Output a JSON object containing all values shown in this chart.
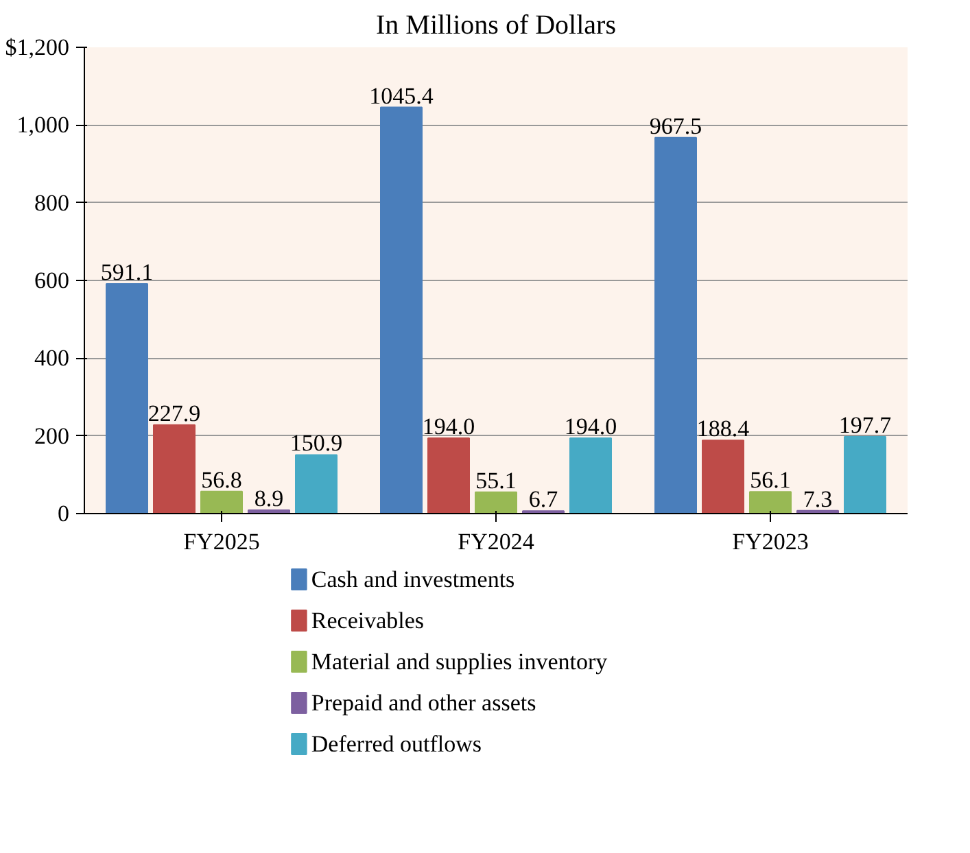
{
  "chart_data": {
    "type": "bar",
    "title": "In Millions of Dollars",
    "categories": [
      "FY2025",
      "FY2024",
      "FY2023"
    ],
    "series": [
      {
        "name": "Cash and investments",
        "color": "#4a7ebb",
        "values": [
          591.1,
          1045.4,
          967.5
        ],
        "value_labels": [
          "591.1",
          "1045.4",
          "967.5"
        ]
      },
      {
        "name": "Receivables",
        "color": "#be4b48",
        "values": [
          227.9,
          194.0,
          188.4
        ],
        "value_labels": [
          "227.9",
          "194.0",
          "188.4"
        ]
      },
      {
        "name": "Material and supplies inventory",
        "color": "#98b954",
        "values": [
          56.8,
          55.1,
          56.1
        ],
        "value_labels": [
          "56.8",
          "55.1",
          "56.1"
        ]
      },
      {
        "name": "Prepaid and other assets",
        "color": "#7d60a0",
        "values": [
          8.9,
          6.7,
          7.3
        ],
        "value_labels": [
          "8.9",
          "6.7",
          "7.3"
        ]
      },
      {
        "name": "Deferred outflows",
        "color": "#46aac5",
        "values": [
          150.9,
          194.0,
          197.7
        ],
        "value_labels": [
          "150.9",
          "194.0",
          "197.7"
        ]
      }
    ],
    "ylim": [
      0,
      1200
    ],
    "yticks": [
      0,
      200,
      400,
      600,
      800,
      {
        "value": 1000,
        "label": "1,000"
      },
      {
        "value": 1200,
        "label": "$1,200"
      }
    ],
    "grid": "y",
    "legend": "bottom"
  }
}
